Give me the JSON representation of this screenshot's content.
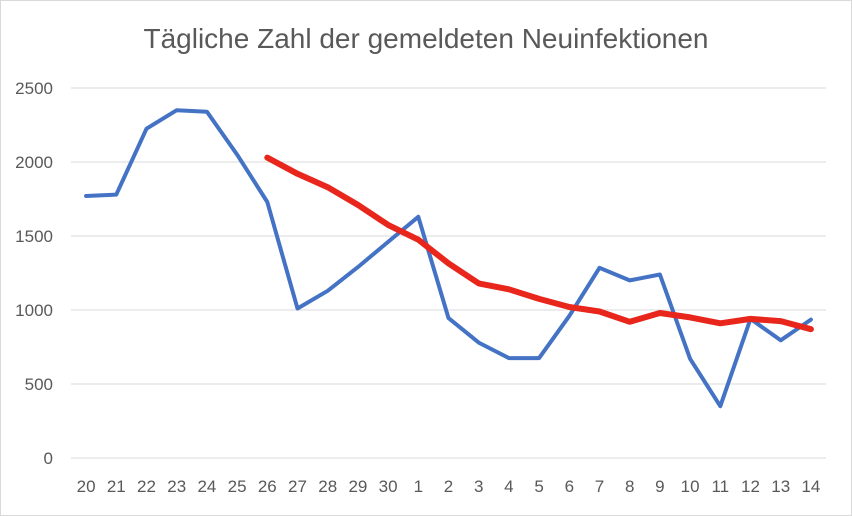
{
  "chart_data": {
    "type": "line",
    "title": "Tägliche Zahl der gemeldeten Neuinfektionen",
    "xlabel": "",
    "ylabel": "",
    "categories": [
      "20",
      "21",
      "22",
      "23",
      "24",
      "25",
      "26",
      "27",
      "28",
      "29",
      "30",
      "1",
      "2",
      "3",
      "4",
      "5",
      "6",
      "7",
      "8",
      "9",
      "10",
      "11",
      "12",
      "13",
      "14"
    ],
    "ylim": [
      0,
      2500
    ],
    "yticks": [
      0,
      500,
      1000,
      1500,
      2000,
      2500
    ],
    "grid": true,
    "legend": "none",
    "series": [
      {
        "color": "#4472c4",
        "values": [
          1770,
          1780,
          2225,
          2350,
          2340,
          2050,
          1730,
          1010,
          1130,
          1290,
          1460,
          1630,
          945,
          780,
          675,
          675,
          960,
          1285,
          1200,
          1240,
          670,
          350,
          940,
          795,
          935
        ]
      },
      {
        "color": "#e8261c",
        "values": [
          null,
          null,
          null,
          null,
          null,
          null,
          2030,
          1920,
          1830,
          1710,
          1575,
          1475,
          1315,
          1180,
          1140,
          1075,
          1020,
          990,
          920,
          980,
          950,
          910,
          940,
          925,
          870
        ]
      }
    ]
  }
}
